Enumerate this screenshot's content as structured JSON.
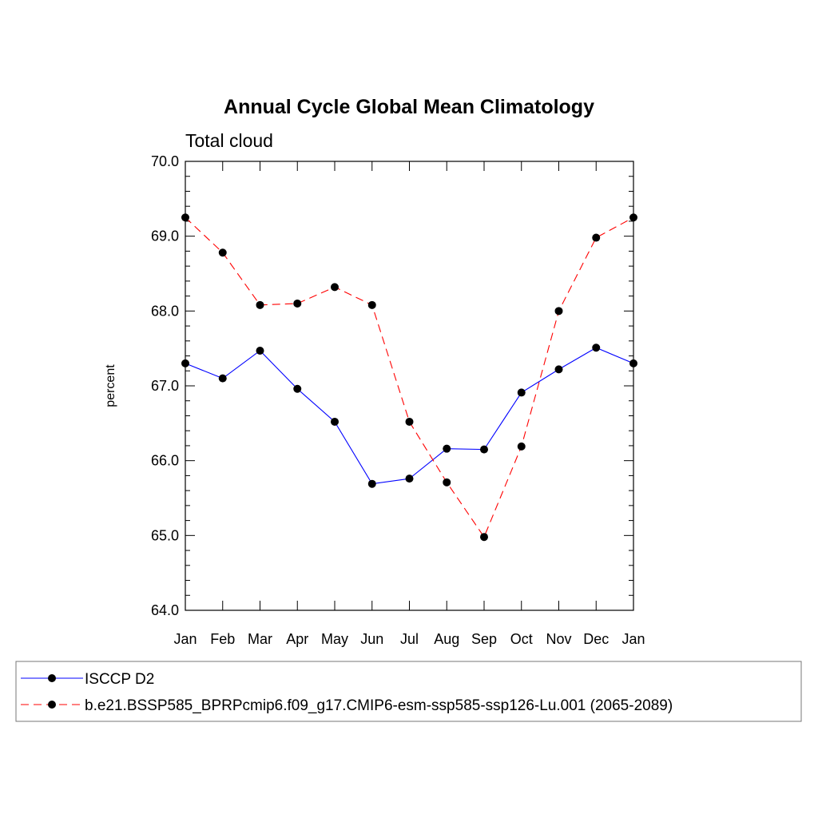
{
  "chart_data": {
    "type": "line",
    "title": "Annual Cycle Global Mean Climatology",
    "subtitle": "Total cloud",
    "xlabel": "",
    "ylabel": "percent",
    "categories": [
      "Jan",
      "Feb",
      "Mar",
      "Apr",
      "May",
      "Jun",
      "Jul",
      "Aug",
      "Sep",
      "Oct",
      "Nov",
      "Dec",
      "Jan"
    ],
    "ylim": [
      64.0,
      70.0
    ],
    "yticks": [
      "64.0",
      "65.0",
      "66.0",
      "67.0",
      "68.0",
      "69.0",
      "70.0"
    ],
    "grid": false,
    "legend_position": "bottom",
    "series": [
      {
        "name": "ISCCP D2",
        "color": "#0000ff",
        "dash": "solid",
        "marker": "circle",
        "values": [
          67.3,
          67.1,
          67.47,
          66.96,
          66.52,
          65.69,
          65.76,
          66.16,
          66.15,
          66.91,
          67.22,
          67.51,
          67.3
        ]
      },
      {
        "name": "b.e21.BSSP585_BPRPcmip6.f09_g17.CMIP6-esm-ssp585-ssp126-Lu.001 (2065-2089)",
        "color": "#ff0000",
        "dash": "dashed",
        "marker": "circle",
        "values": [
          69.25,
          68.78,
          68.08,
          68.1,
          68.32,
          68.08,
          66.52,
          65.71,
          64.98,
          66.19,
          68.0,
          68.98,
          69.25
        ]
      }
    ]
  }
}
